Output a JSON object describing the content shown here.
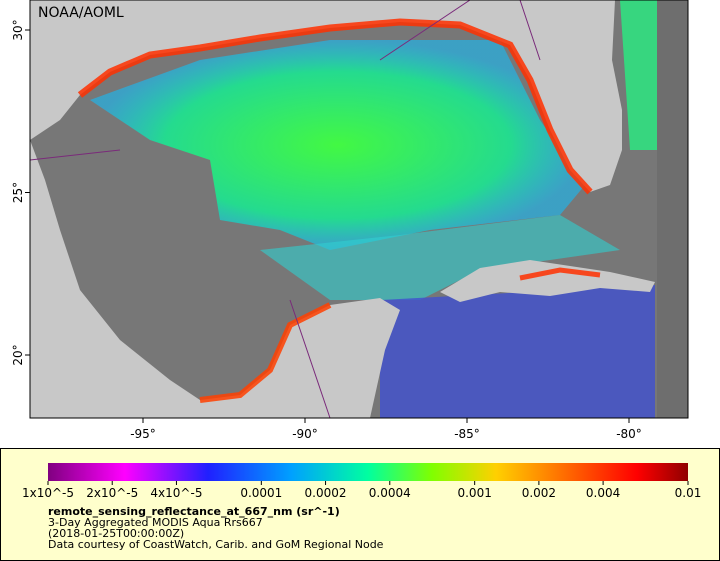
{
  "map": {
    "attribution": "NOAA/AOML",
    "lat_ticks": [
      {
        "value": 30,
        "label": "30°"
      },
      {
        "value": 25,
        "label": "25°"
      },
      {
        "value": 20,
        "label": "20°"
      }
    ],
    "lon_ticks": [
      {
        "value": -95,
        "label": "-95°"
      },
      {
        "value": -90,
        "label": "-90°"
      },
      {
        "value": -85,
        "label": "-85°"
      },
      {
        "value": -80,
        "label": "-80°"
      }
    ],
    "colorbar": {
      "log": true,
      "range": [
        1e-05,
        0.01
      ],
      "ticks": [
        {
          "value": 1e-05,
          "label": "1x10^-5"
        },
        {
          "value": 2e-05,
          "label": "2x10^-5"
        },
        {
          "value": 4e-05,
          "label": "4x10^-5"
        },
        {
          "value": 0.0001,
          "label": "0.0001"
        },
        {
          "value": 0.0002,
          "label": "0.0002"
        },
        {
          "value": 0.0004,
          "label": "0.0004"
        },
        {
          "value": 0.001,
          "label": "0.001"
        },
        {
          "value": 0.002,
          "label": "0.002"
        },
        {
          "value": 0.004,
          "label": "0.004"
        },
        {
          "value": 0.01,
          "label": "0.01"
        }
      ],
      "variable": "remote_sensing_reflectance_at_667_nm (sr^-1)",
      "description": "3-Day Aggregated MODIS Aqua Rrs667",
      "time": "(2018-01-25T00:00:00Z)",
      "credit": "Data courtesy of CoastWatch, Carib. and GoM Regional Node"
    }
  }
}
